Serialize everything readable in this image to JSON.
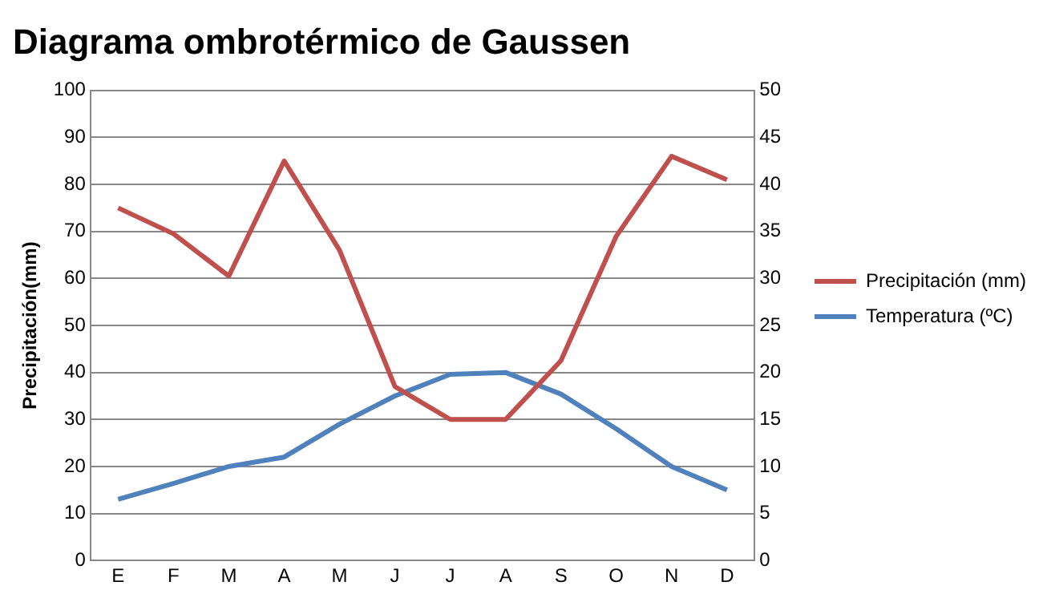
{
  "chart_data": {
    "type": "line",
    "title": "Diagrama ombrotérmico de Gaussen",
    "ylabel": "Precipitación(mm)",
    "categories": [
      "E",
      "F",
      "M",
      "A",
      "M",
      "J",
      "J",
      "A",
      "S",
      "O",
      "N",
      "D"
    ],
    "series": [
      {
        "name": "Precipitación (mm)",
        "color": "#c0504d",
        "values": [
          75,
          69.5,
          60.5,
          85,
          66,
          37,
          30,
          30,
          42.5,
          69,
          86,
          81
        ]
      },
      {
        "name": "Temperatura (ºC)",
        "color": "#4f81bd",
        "axis": "y2",
        "values": [
          6.5,
          8.2,
          10,
          11,
          14.5,
          17.5,
          19.8,
          20,
          17.7,
          14,
          10,
          7.5
        ]
      }
    ],
    "ylim": [
      0,
      100
    ],
    "yticks": [
      0,
      10,
      20,
      30,
      40,
      50,
      60,
      70,
      80,
      90,
      100
    ],
    "y2lim": [
      0,
      50
    ],
    "y2ticks": [
      0,
      5,
      10,
      15,
      20,
      25,
      30,
      35,
      40,
      45,
      50
    ],
    "grid": "y",
    "legend": "right",
    "marker": "none"
  }
}
